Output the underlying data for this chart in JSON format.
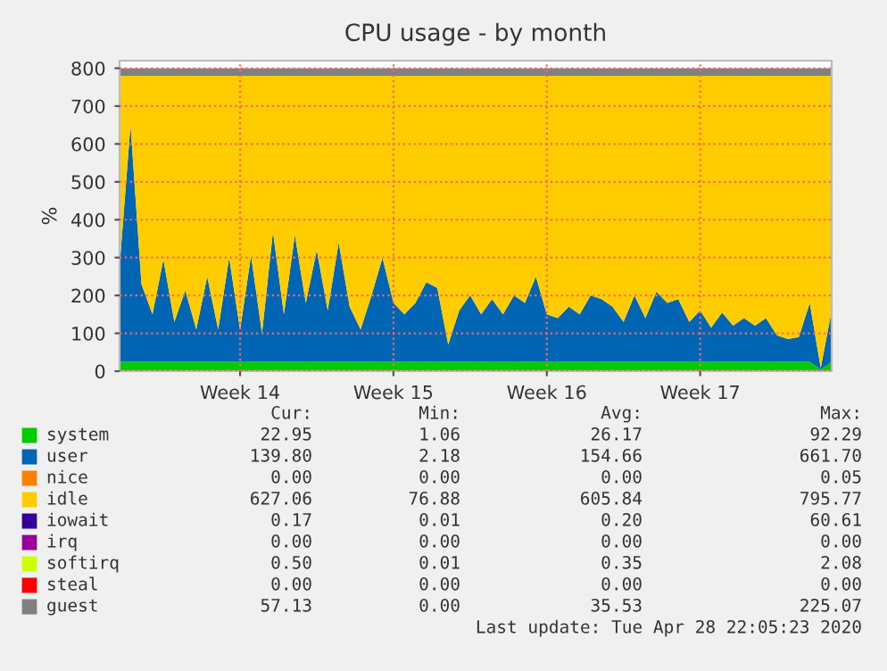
{
  "chart_data": {
    "type": "area",
    "stacked": true,
    "title": "CPU usage - by month",
    "ylabel": "%",
    "categories": [
      null,
      null,
      null,
      null,
      null,
      null,
      null,
      null,
      null,
      null,
      null,
      "Week 14",
      null,
      null,
      null,
      null,
      null,
      null,
      null,
      null,
      null,
      null,
      null,
      null,
      null,
      "Week 15",
      null,
      null,
      null,
      null,
      null,
      null,
      null,
      null,
      null,
      null,
      null,
      null,
      null,
      "Week 16",
      null,
      null,
      null,
      null,
      null,
      null,
      null,
      null,
      null,
      null,
      null,
      null,
      null,
      "Week 17",
      null,
      null,
      null,
      null,
      null,
      null,
      null,
      null,
      null,
      null,
      null,
      null
    ],
    "series": [
      {
        "name": "system",
        "color": "#00cc00",
        "values": [
          25,
          25,
          25,
          25,
          25,
          25,
          25,
          25,
          25,
          25,
          25,
          25,
          25,
          25,
          25,
          25,
          25,
          25,
          25,
          25,
          25,
          25,
          25,
          25,
          25,
          25,
          25,
          25,
          25,
          25,
          25,
          25,
          25,
          25,
          25,
          25,
          25,
          25,
          25,
          25,
          25,
          25,
          25,
          25,
          25,
          25,
          25,
          25,
          25,
          25,
          25,
          25,
          25,
          25,
          25,
          25,
          25,
          25,
          25,
          25,
          25,
          25,
          25,
          25,
          5,
          25
        ]
      },
      {
        "name": "user",
        "color": "#0066b3",
        "values": [
          251,
          625,
          205,
          125,
          270,
          105,
          188,
          85,
          225,
          85,
          275,
          85,
          280,
          75,
          343,
          125,
          335,
          155,
          295,
          135,
          315,
          145,
          85,
          175,
          275,
          155,
          125,
          155,
          210,
          195,
          45,
          135,
          175,
          125,
          165,
          125,
          175,
          155,
          225,
          125,
          115,
          145,
          125,
          175,
          165,
          145,
          105,
          175,
          115,
          185,
          155,
          165,
          105,
          135,
          90,
          130,
          95,
          115,
          95,
          115,
          70,
          60,
          65,
          155,
          3,
          135
        ]
      },
      {
        "name": "nice",
        "color": "#ff8000",
        "values": [
          null,
          null,
          null,
          null,
          null,
          null,
          null,
          null,
          null,
          null,
          null,
          null,
          null,
          null,
          null,
          null,
          null,
          null,
          null,
          null,
          null,
          null,
          null,
          null,
          null,
          null,
          null,
          null,
          null,
          null,
          null,
          null,
          null,
          null,
          null,
          null,
          null,
          null,
          null,
          null,
          null,
          null,
          null,
          null,
          null,
          null,
          null,
          null,
          null,
          null,
          null,
          null,
          null,
          null,
          null,
          null,
          null,
          null,
          null,
          null,
          null,
          null,
          null,
          null,
          null,
          null
        ]
      },
      {
        "name": "idle",
        "color": "#ffcc00",
        "values": [
          504,
          130,
          550,
          630,
          485,
          650,
          567,
          670,
          530,
          670,
          480,
          670,
          475,
          680,
          412,
          630,
          420,
          600,
          460,
          620,
          440,
          610,
          670,
          580,
          480,
          600,
          630,
          600,
          545,
          560,
          710,
          620,
          580,
          630,
          590,
          630,
          580,
          600,
          530,
          630,
          640,
          610,
          630,
          580,
          590,
          610,
          650,
          580,
          640,
          570,
          600,
          590,
          650,
          620,
          665,
          625,
          660,
          640,
          660,
          640,
          685,
          695,
          690,
          600,
          772,
          620
        ]
      },
      {
        "name": "iowait",
        "color": "#330099",
        "values": [
          null,
          null,
          null,
          null,
          null,
          null,
          null,
          null,
          null,
          null,
          null,
          null,
          null,
          null,
          null,
          null,
          null,
          null,
          null,
          null,
          null,
          null,
          null,
          null,
          null,
          null,
          null,
          null,
          null,
          null,
          null,
          null,
          null,
          null,
          null,
          null,
          null,
          null,
          null,
          null,
          null,
          null,
          null,
          null,
          null,
          null,
          null,
          null,
          null,
          null,
          null,
          null,
          null,
          null,
          null,
          null,
          null,
          null,
          null,
          null,
          null,
          null,
          null,
          null,
          null,
          null
        ]
      },
      {
        "name": "irq",
        "color": "#990099",
        "values": [
          null,
          null,
          null,
          null,
          null,
          null,
          null,
          null,
          null,
          null,
          null,
          null,
          null,
          null,
          null,
          null,
          null,
          null,
          null,
          null,
          null,
          null,
          null,
          null,
          null,
          null,
          null,
          null,
          null,
          null,
          null,
          null,
          null,
          null,
          null,
          null,
          null,
          null,
          null,
          null,
          null,
          null,
          null,
          null,
          null,
          null,
          null,
          null,
          null,
          null,
          null,
          null,
          null,
          null,
          null,
          null,
          null,
          null,
          null,
          null,
          null,
          null,
          null,
          null,
          null,
          null
        ]
      },
      {
        "name": "softirq",
        "color": "#ccff00",
        "values": [
          null,
          null,
          null,
          null,
          null,
          null,
          null,
          null,
          null,
          null,
          null,
          null,
          null,
          null,
          null,
          null,
          null,
          null,
          null,
          null,
          null,
          null,
          null,
          null,
          null,
          null,
          null,
          null,
          null,
          null,
          null,
          null,
          null,
          null,
          null,
          null,
          null,
          null,
          null,
          null,
          null,
          null,
          null,
          null,
          null,
          null,
          null,
          null,
          null,
          null,
          null,
          null,
          null,
          null,
          null,
          null,
          null,
          null,
          null,
          null,
          null,
          null,
          null,
          null,
          null,
          null
        ]
      },
      {
        "name": "steal",
        "color": "#ff0000",
        "values": [
          null,
          null,
          null,
          null,
          null,
          null,
          null,
          null,
          null,
          null,
          null,
          null,
          null,
          null,
          null,
          null,
          null,
          null,
          null,
          null,
          null,
          null,
          null,
          null,
          null,
          null,
          null,
          null,
          null,
          null,
          null,
          null,
          null,
          null,
          null,
          null,
          null,
          null,
          null,
          null,
          null,
          null,
          null,
          null,
          null,
          null,
          null,
          null,
          null,
          null,
          null,
          null,
          null,
          null,
          null,
          null,
          null,
          null,
          null,
          null,
          null,
          null,
          null,
          null,
          null,
          null
        ]
      },
      {
        "name": "guest",
        "color": "#808080",
        "values": [
          20,
          20,
          20,
          20,
          20,
          20,
          20,
          20,
          20,
          20,
          20,
          20,
          20,
          20,
          20,
          20,
          20,
          20,
          20,
          20,
          20,
          20,
          20,
          20,
          20,
          20,
          20,
          20,
          20,
          20,
          20,
          20,
          20,
          20,
          20,
          20,
          20,
          20,
          20,
          20,
          20,
          20,
          20,
          20,
          20,
          20,
          20,
          20,
          20,
          20,
          20,
          20,
          20,
          20,
          20,
          20,
          20,
          20,
          20,
          20,
          20,
          20,
          20,
          20,
          20,
          20
        ]
      }
    ],
    "ylim": [
      0,
      820
    ],
    "yticks": [
      0,
      100,
      200,
      300,
      400,
      500,
      600,
      700,
      800
    ],
    "grid": true,
    "legend": "bottom",
    "annotations": [
      "Cur:",
      "Min:",
      "Avg:",
      "Max:",
      "22.95",
      "1.06",
      "26.17",
      "92.29",
      "139.80",
      "2.18",
      "154.66",
      "661.70",
      "0.00",
      "0.00",
      "0.00",
      "0.05",
      "627.06",
      "76.88",
      "605.84",
      "795.77",
      "0.17",
      "0.01",
      "0.20",
      "60.61",
      "0.00",
      "0.00",
      "0.00",
      "0.00",
      "0.50",
      "0.01",
      "0.35",
      "2.08",
      "0.00",
      "0.00",
      "0.00",
      "0.00",
      "57.13",
      "0.00",
      "35.53",
      "225.07",
      "Last update: Tue Apr 28 22:05:23 2020"
    ]
  }
}
